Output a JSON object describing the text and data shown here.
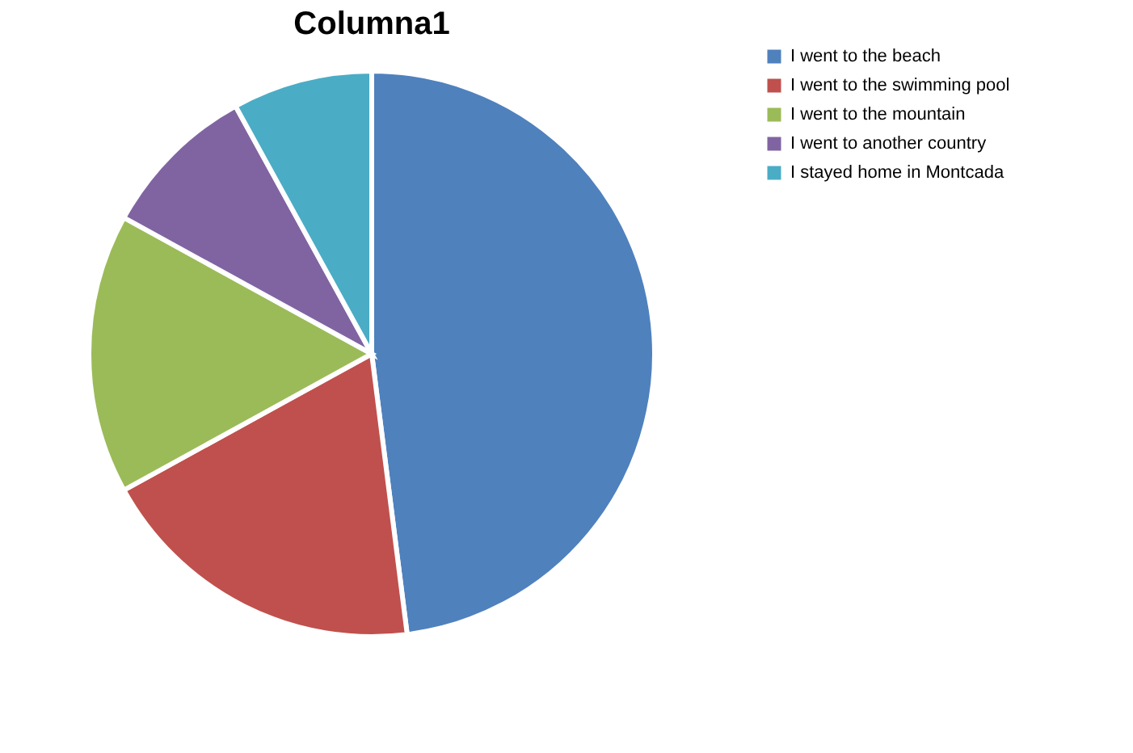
{
  "chart_data": {
    "type": "pie",
    "title": "Columna1",
    "categories": [
      "I went to the beach",
      "I went to the swimming pool",
      "I went to the mountain",
      "I went to another country",
      "I stayed home in Montcada"
    ],
    "values": [
      48,
      19,
      16,
      9,
      8
    ],
    "colors": [
      "#4f81bd",
      "#c0504d",
      "#9bbb59",
      "#8064a2",
      "#4bacc6"
    ],
    "legend": "right"
  }
}
